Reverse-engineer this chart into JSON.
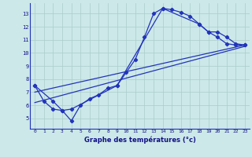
{
  "xlabel": "Graphe des températures (°c)",
  "bg_color": "#cce8e8",
  "line_color": "#2233bb",
  "grid_color": "#aacccc",
  "xlim": [
    -0.5,
    23.5
  ],
  "ylim": [
    4.2,
    13.8
  ],
  "xticks": [
    0,
    1,
    2,
    3,
    4,
    5,
    6,
    7,
    8,
    9,
    10,
    11,
    12,
    13,
    14,
    15,
    16,
    17,
    18,
    19,
    20,
    21,
    22,
    23
  ],
  "yticks": [
    5,
    6,
    7,
    8,
    9,
    10,
    11,
    12,
    13
  ],
  "line1_x": [
    0,
    1,
    2,
    3,
    4,
    5,
    6,
    7,
    8,
    9,
    10,
    11,
    12,
    13,
    14,
    15,
    16,
    17,
    18,
    19,
    20,
    21,
    22,
    23
  ],
  "line1_y": [
    7.5,
    6.3,
    5.7,
    5.6,
    4.8,
    6.0,
    6.5,
    6.8,
    7.3,
    7.5,
    8.5,
    9.5,
    11.2,
    13.0,
    13.4,
    13.3,
    13.1,
    12.8,
    12.2,
    11.6,
    11.2,
    10.7,
    10.6,
    10.6
  ],
  "line2_x": [
    0,
    2,
    3,
    4,
    9,
    14,
    18,
    19,
    20,
    21,
    22,
    23
  ],
  "line2_y": [
    7.5,
    6.3,
    5.6,
    5.7,
    7.5,
    13.4,
    12.2,
    11.6,
    11.6,
    11.2,
    10.7,
    10.6
  ],
  "line3_x": [
    0,
    23
  ],
  "line3_y": [
    7.0,
    10.6
  ],
  "line4_x": [
    0,
    23
  ],
  "line4_y": [
    6.2,
    10.5
  ]
}
